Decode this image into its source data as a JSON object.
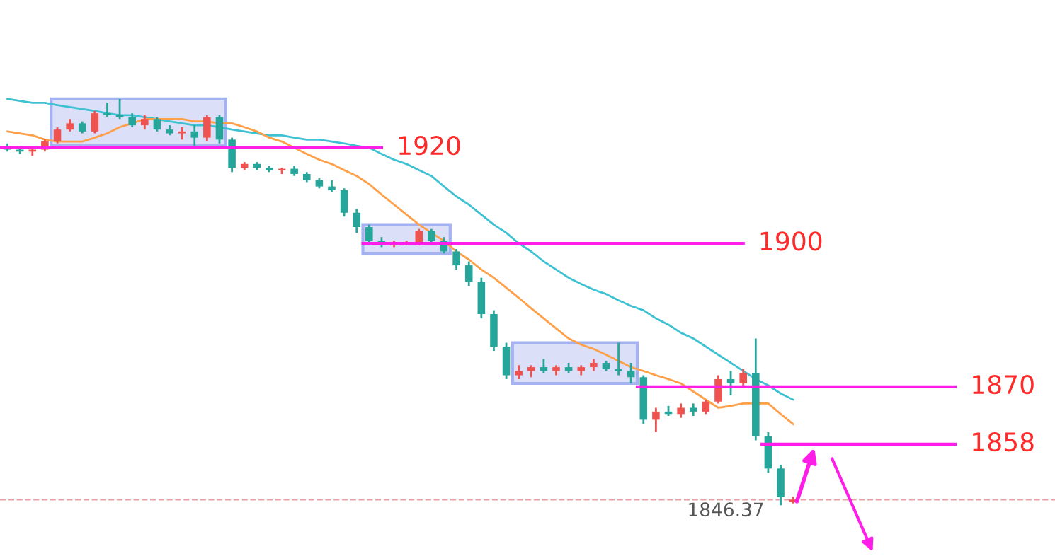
{
  "chart_data": {
    "type": "candlestick",
    "tick_labels": false,
    "ylim": [
      1834.6,
      1950.9
    ],
    "categories": [
      null,
      null,
      null,
      null,
      null,
      null,
      null,
      null,
      null,
      null,
      null,
      null,
      null,
      null,
      null,
      null,
      null,
      null,
      null,
      null,
      null,
      null,
      null,
      null,
      null,
      null,
      null,
      null,
      null,
      null,
      null,
      null,
      null,
      null,
      null,
      null,
      null,
      null,
      null,
      null,
      null,
      null,
      null,
      null,
      null,
      null,
      null,
      null,
      null,
      null,
      null,
      null,
      null,
      null,
      null,
      null,
      null,
      null,
      null,
      null,
      null,
      null,
      null,
      null
    ],
    "ohlc": [
      [
        1920.0,
        1920.9,
        1919.2,
        1919.6
      ],
      [
        1919.6,
        1920.4,
        1918.7,
        1919.2
      ],
      [
        1919.2,
        1920.0,
        1918.3,
        1919.6
      ],
      [
        1919.6,
        1921.7,
        1919.2,
        1921.3
      ],
      [
        1921.3,
        1924.3,
        1920.9,
        1923.8
      ],
      [
        1923.8,
        1926.0,
        1923.4,
        1925.1
      ],
      [
        1925.1,
        1925.5,
        1923.0,
        1923.4
      ],
      [
        1923.4,
        1927.7,
        1923.0,
        1927.2
      ],
      [
        1927.2,
        1929.4,
        1926.4,
        1926.8
      ],
      [
        1926.8,
        1930.2,
        1926.0,
        1926.4
      ],
      [
        1926.4,
        1927.2,
        1924.3,
        1924.7
      ],
      [
        1924.7,
        1926.8,
        1923.8,
        1926.0
      ],
      [
        1926.0,
        1926.4,
        1923.4,
        1923.8
      ],
      [
        1923.8,
        1924.7,
        1922.6,
        1923.0
      ],
      [
        1923.0,
        1924.3,
        1921.7,
        1923.4
      ],
      [
        1923.4,
        1924.7,
        1920.4,
        1922.1
      ],
      [
        1922.1,
        1926.8,
        1921.3,
        1926.4
      ],
      [
        1926.4,
        1926.8,
        1920.9,
        1921.7
      ],
      [
        1921.7,
        1922.1,
        1914.9,
        1915.8
      ],
      [
        1915.8,
        1917.0,
        1915.3,
        1916.6
      ],
      [
        1916.6,
        1917.0,
        1915.3,
        1915.8
      ],
      [
        1915.8,
        1916.2,
        1914.9,
        1915.3
      ],
      [
        1915.3,
        1915.8,
        1914.5,
        1915.6
      ],
      [
        1915.6,
        1916.2,
        1914.1,
        1914.5
      ],
      [
        1914.5,
        1914.9,
        1912.8,
        1913.2
      ],
      [
        1913.2,
        1913.6,
        1911.5,
        1911.9
      ],
      [
        1911.9,
        1913.2,
        1910.7,
        1911.1
      ],
      [
        1911.1,
        1911.5,
        1905.6,
        1906.4
      ],
      [
        1906.4,
        1907.2,
        1902.2,
        1903.4
      ],
      [
        1903.4,
        1903.9,
        1899.6,
        1900.5
      ],
      [
        1900.5,
        1901.3,
        1899.2,
        1899.6
      ],
      [
        1899.6,
        1900.5,
        1899.2,
        1900.0
      ],
      [
        1900.0,
        1900.5,
        1899.6,
        1900.3
      ],
      [
        1900.3,
        1903.0,
        1899.6,
        1902.6
      ],
      [
        1902.6,
        1903.0,
        1900.0,
        1900.5
      ],
      [
        1900.5,
        1901.3,
        1897.9,
        1898.3
      ],
      [
        1898.3,
        1898.8,
        1894.5,
        1895.4
      ],
      [
        1895.4,
        1896.2,
        1891.1,
        1892.0
      ],
      [
        1892.0,
        1892.8,
        1884.3,
        1885.2
      ],
      [
        1885.2,
        1886.0,
        1877.5,
        1878.4
      ],
      [
        1878.4,
        1879.2,
        1871.6,
        1872.4
      ],
      [
        1872.4,
        1874.5,
        1871.6,
        1873.3
      ],
      [
        1873.3,
        1874.5,
        1872.0,
        1874.1
      ],
      [
        1874.1,
        1875.8,
        1872.8,
        1873.3
      ],
      [
        1873.3,
        1874.5,
        1872.4,
        1874.1
      ],
      [
        1874.1,
        1875.0,
        1872.8,
        1873.3
      ],
      [
        1873.3,
        1874.5,
        1872.4,
        1874.1
      ],
      [
        1874.1,
        1875.8,
        1873.3,
        1875.0
      ],
      [
        1875.0,
        1875.4,
        1873.3,
        1873.7
      ],
      [
        1873.7,
        1879.2,
        1872.4,
        1873.3
      ],
      [
        1873.3,
        1875.0,
        1870.7,
        1872.0
      ],
      [
        1872.0,
        1872.4,
        1862.2,
        1863.1
      ],
      [
        1863.1,
        1865.6,
        1860.5,
        1864.8
      ],
      [
        1864.8,
        1866.0,
        1863.9,
        1864.3
      ],
      [
        1864.3,
        1866.5,
        1863.5,
        1865.6
      ],
      [
        1865.6,
        1866.5,
        1863.9,
        1864.8
      ],
      [
        1864.8,
        1867.3,
        1864.3,
        1866.9
      ],
      [
        1866.9,
        1872.4,
        1866.5,
        1871.6
      ],
      [
        1871.6,
        1873.3,
        1868.2,
        1870.7
      ],
      [
        1870.7,
        1873.7,
        1869.9,
        1872.8
      ],
      [
        1872.8,
        1880.1,
        1858.8,
        1859.7
      ],
      [
        1859.7,
        1860.5,
        1852.0,
        1852.9
      ],
      [
        1852.9,
        1853.7,
        1845.2,
        1846.9
      ],
      [
        1845.9,
        1847.0,
        1845.6,
        1846.4
      ]
    ],
    "colors": [
      "#26a69a",
      "#26a69a",
      "#ef5350",
      "#ef5350",
      "#ef5350",
      "#ef5350",
      "#26a69a",
      "#ef5350",
      "#26a69a",
      "#26a69a",
      "#26a69a",
      "#ef5350",
      "#26a69a",
      "#26a69a",
      "#ef5350",
      "#26a69a",
      "#ef5350",
      "#26a69a",
      "#26a69a",
      "#ef5350",
      "#26a69a",
      "#26a69a",
      "#ef5350",
      "#26a69a",
      "#26a69a",
      "#26a69a",
      "#26a69a",
      "#26a69a",
      "#26a69a",
      "#26a69a",
      "#26a69a",
      "#ef5350",
      "#ef5350",
      "#ef5350",
      "#26a69a",
      "#26a69a",
      "#26a69a",
      "#26a69a",
      "#26a69a",
      "#26a69a",
      "#26a69a",
      "#ef5350",
      "#ef5350",
      "#26a69a",
      "#ef5350",
      "#26a69a",
      "#ef5350",
      "#ef5350",
      "#26a69a",
      "#26a69a",
      "#26a69a",
      "#26a69a",
      "#ef5350",
      "#26a69a",
      "#ef5350",
      "#26a69a",
      "#ef5350",
      "#ef5350",
      "#26a69a",
      "#ef5350",
      "#26a69a",
      "#26a69a",
      "#26a69a",
      "#ef5350"
    ],
    "series": [
      {
        "type": "line",
        "color": "#3ec1d3",
        "values": [
          1930.2,
          1929.8,
          1929.4,
          1929.4,
          1928.9,
          1928.5,
          1928.1,
          1927.7,
          1927.2,
          1926.8,
          1926.8,
          1926.4,
          1926.0,
          1925.5,
          1925.1,
          1924.7,
          1924.7,
          1924.3,
          1923.8,
          1923.4,
          1923.0,
          1922.6,
          1922.6,
          1922.1,
          1921.7,
          1921.7,
          1921.3,
          1920.9,
          1920.4,
          1920.0,
          1918.7,
          1917.5,
          1916.6,
          1915.3,
          1914.1,
          1911.9,
          1909.8,
          1908.1,
          1906.0,
          1903.9,
          1902.2,
          1900.0,
          1898.3,
          1896.2,
          1894.5,
          1892.8,
          1891.5,
          1890.3,
          1889.4,
          1888.1,
          1886.9,
          1886.0,
          1884.3,
          1883.0,
          1881.3,
          1880.1,
          1878.4,
          1876.7,
          1875.0,
          1873.3,
          1871.6,
          1870.3,
          1868.6,
          1867.3
        ]
      },
      {
        "type": "line",
        "color": "#ffa048",
        "values": [
          1923.4,
          1923.0,
          1922.6,
          1921.7,
          1921.3,
          1921.3,
          1921.3,
          1922.1,
          1923.0,
          1924.3,
          1925.1,
          1926.0,
          1926.0,
          1926.0,
          1926.0,
          1925.5,
          1925.5,
          1925.1,
          1925.1,
          1924.3,
          1923.4,
          1922.1,
          1921.3,
          1920.0,
          1918.7,
          1917.5,
          1916.6,
          1915.3,
          1914.1,
          1912.4,
          1910.2,
          1908.1,
          1906.0,
          1903.9,
          1902.2,
          1900.5,
          1898.3,
          1896.6,
          1894.5,
          1892.8,
          1890.7,
          1888.6,
          1886.4,
          1884.3,
          1882.2,
          1880.1,
          1878.8,
          1877.9,
          1876.7,
          1875.4,
          1874.1,
          1873.3,
          1872.4,
          1871.6,
          1870.7,
          1869.0,
          1867.3,
          1865.6,
          1866.0,
          1866.5,
          1866.5,
          1866.5,
          1864.3,
          1862.2
        ]
      }
    ],
    "ref_lines": [
      {
        "axis": "y",
        "value": 1920,
        "label": "1920",
        "color": "#ff1ee8",
        "line_style": "solid"
      },
      {
        "axis": "y",
        "value": 1900,
        "label": "1900",
        "color": "#ff1ee8",
        "line_style": "solid"
      },
      {
        "axis": "y",
        "value": 1870,
        "label": "1870",
        "color": "#ff1ee8",
        "line_style": "solid"
      },
      {
        "axis": "y",
        "value": 1858,
        "label": "1858",
        "color": "#ff1ee8",
        "line_style": "solid"
      },
      {
        "axis": "y",
        "value": 1846.37,
        "label": "1846.37",
        "color": "#e8a0a8",
        "line_style": "dashed"
      }
    ]
  }
}
